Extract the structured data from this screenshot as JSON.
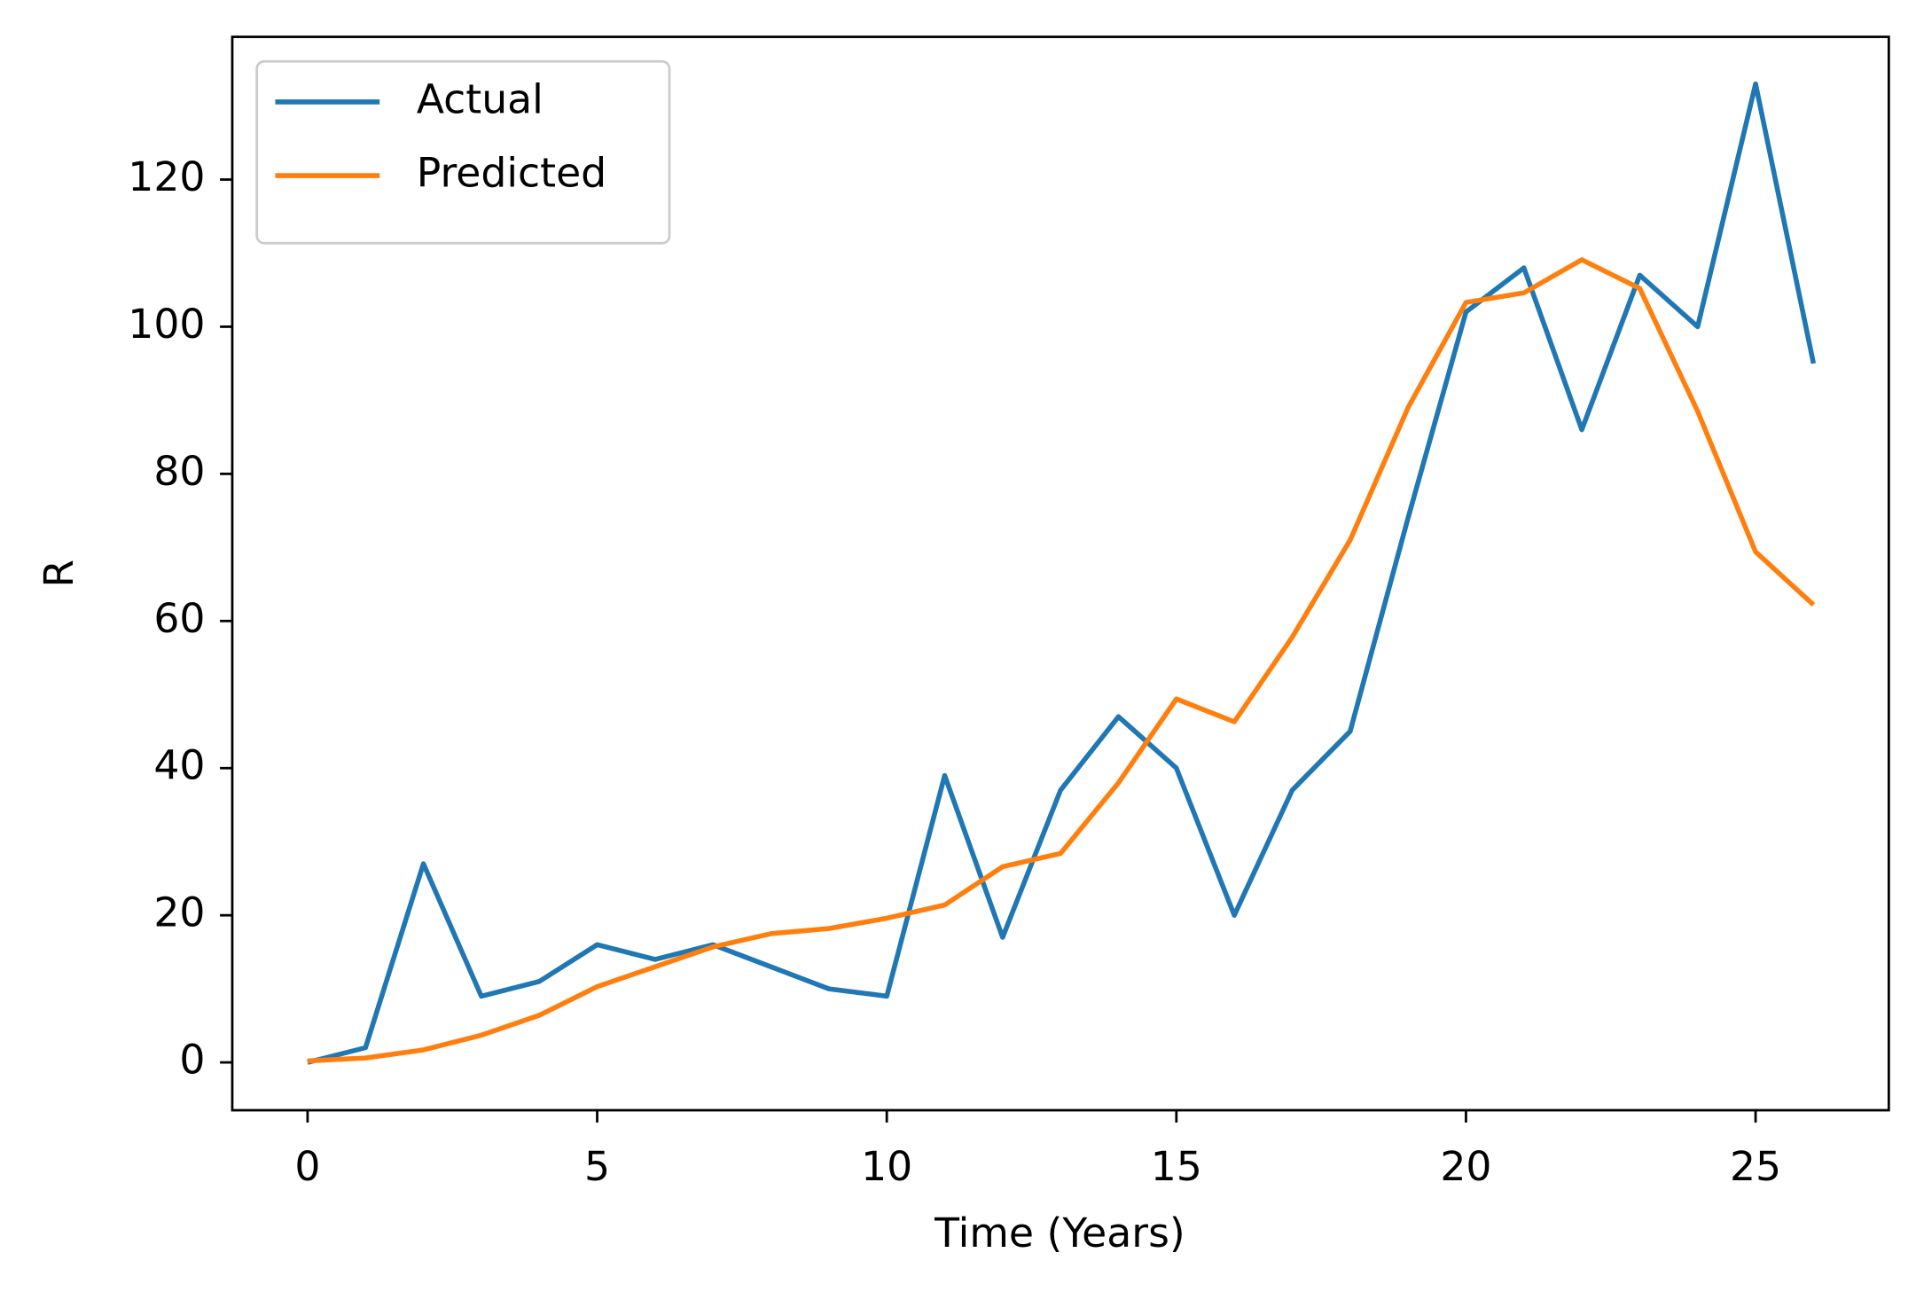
{
  "chart_data": {
    "type": "line",
    "x_label": "Time (Years)",
    "y_label": "R",
    "x": [
      0,
      1,
      2,
      3,
      4,
      5,
      6,
      7,
      8,
      9,
      10,
      11,
      12,
      13,
      14,
      15,
      16,
      17,
      18,
      19,
      20,
      21,
      22,
      23,
      24,
      25,
      26
    ],
    "series": [
      {
        "name": "Actual",
        "color": "#1f77b4",
        "values": [
          0,
          2,
          27,
          9,
          11,
          16,
          14,
          16,
          13,
          10,
          9,
          39,
          17,
          37,
          47,
          40,
          20,
          37,
          45,
          74,
          102,
          108,
          86,
          107,
          100,
          133,
          95
        ]
      },
      {
        "name": "Predicted",
        "color": "#ff7f0e",
        "values": [
          0.2,
          0.6,
          1.7,
          3.7,
          6.4,
          10.3,
          13,
          15.7,
          17.5,
          18.2,
          19.6,
          21.4,
          26.6,
          28.4,
          38,
          49.4,
          46.3,
          57.8,
          71,
          89,
          103.3,
          104.6,
          109.1,
          105.2,
          88.5,
          69.4,
          62.2
        ]
      }
    ],
    "xlim": [
      -1.3,
      27.3
    ],
    "ylim": [
      -6.5,
      139.4
    ],
    "xticks": [
      0,
      5,
      10,
      15,
      20,
      25
    ],
    "yticks": [
      0,
      20,
      40,
      60,
      80,
      100,
      120
    ],
    "legend": "upper left",
    "grid": false
  }
}
